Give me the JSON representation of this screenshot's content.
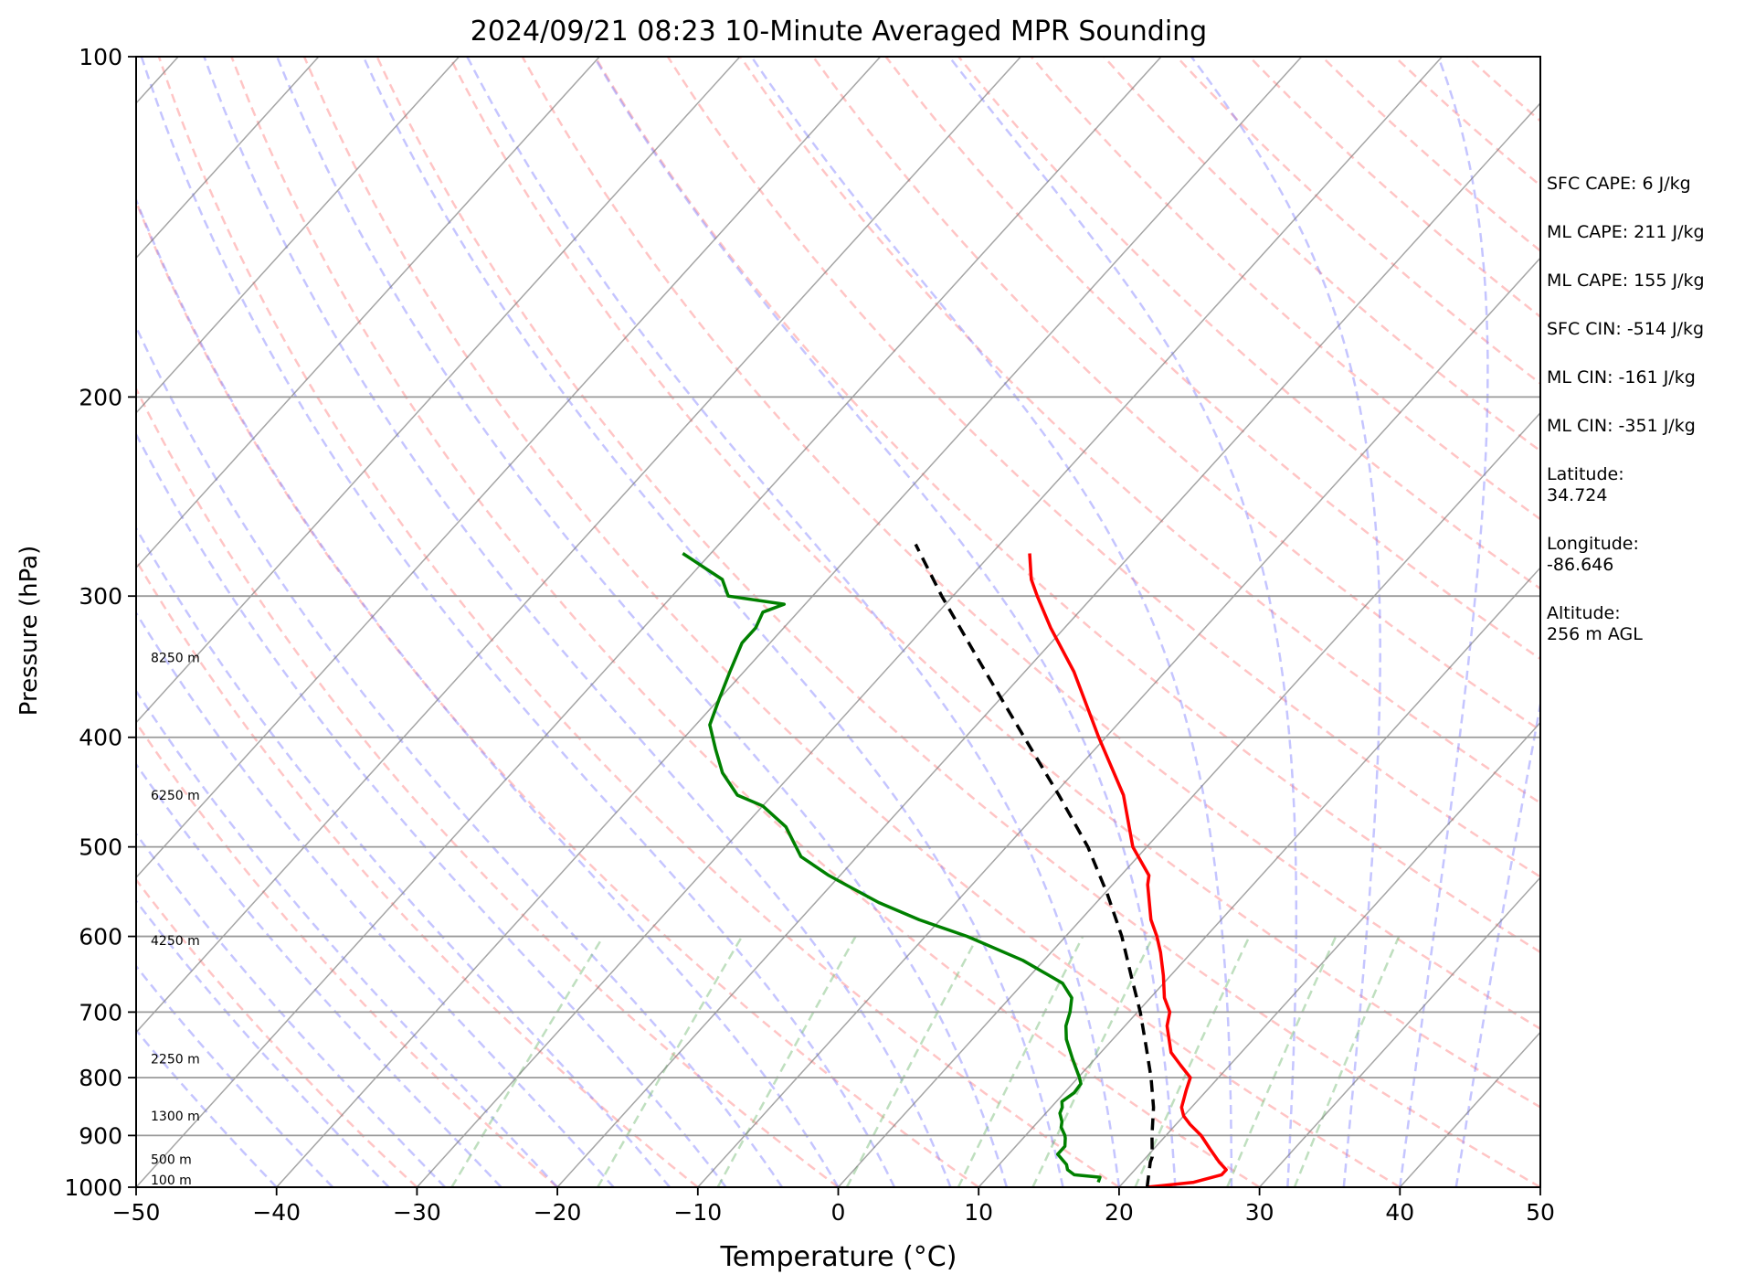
{
  "chart_data": {
    "type": "line",
    "title": "2024/09/21 08:23 10-Minute Averaged MPR Sounding",
    "xlabel": "Temperature (°C)",
    "ylabel": "Pressure (hPa)",
    "xlim": [
      -50,
      50
    ],
    "ylim": [
      1000,
      100
    ],
    "y_scale": "log",
    "skew": true,
    "x_ticks": [
      -50,
      -40,
      -30,
      -20,
      -10,
      0,
      10,
      20,
      30,
      40,
      50
    ],
    "x_tick_labels": [
      "−50",
      "−40",
      "−30",
      "−20",
      "−10",
      "0",
      "10",
      "20",
      "30",
      "40",
      "50"
    ],
    "y_ticks": [
      1000,
      900,
      800,
      700,
      600,
      500,
      400,
      300,
      200,
      100
    ],
    "y_tick_labels": [
      "1000",
      "900",
      "800",
      "700",
      "600",
      "500",
      "400",
      "300",
      "200",
      "100"
    ],
    "grid": true,
    "height_labels": [
      {
        "p": 985,
        "text": "100 m"
      },
      {
        "p": 945,
        "text": "500 m"
      },
      {
        "p": 865,
        "text": "1300 m"
      },
      {
        "p": 770,
        "text": "2250 m"
      },
      {
        "p": 605,
        "text": "4250 m"
      },
      {
        "p": 450,
        "text": "6250 m"
      },
      {
        "p": 340,
        "text": "8250 m"
      }
    ],
    "series": [
      {
        "role": "temperature",
        "color": "#ff0000",
        "points": [
          [
            1000,
            22.0
          ],
          [
            990,
            25.0
          ],
          [
            975,
            26.5
          ],
          [
            965,
            26.5
          ],
          [
            950,
            25.5
          ],
          [
            925,
            24.0
          ],
          [
            900,
            22.5
          ],
          [
            880,
            21.0
          ],
          [
            865,
            20.0
          ],
          [
            850,
            19.3
          ],
          [
            820,
            18.5
          ],
          [
            800,
            18.0
          ],
          [
            780,
            16.5
          ],
          [
            760,
            15.0
          ],
          [
            720,
            13.0
          ],
          [
            700,
            12.3
          ],
          [
            680,
            11.0
          ],
          [
            650,
            9.5
          ],
          [
            620,
            7.8
          ],
          [
            600,
            6.5
          ],
          [
            580,
            5.0
          ],
          [
            540,
            2.5
          ],
          [
            530,
            2.0
          ],
          [
            500,
            -1.0
          ],
          [
            450,
            -5.0
          ],
          [
            400,
            -10.5
          ],
          [
            350,
            -16.5
          ],
          [
            320,
            -21.0
          ],
          [
            300,
            -24.0
          ],
          [
            290,
            -25.5
          ],
          [
            275,
            -27.3
          ]
        ]
      },
      {
        "role": "dewpoint",
        "color": "#008000",
        "points": [
          [
            990,
            18.2
          ],
          [
            980,
            18.0
          ],
          [
            975,
            16.0
          ],
          [
            965,
            15.2
          ],
          [
            955,
            14.8
          ],
          [
            935,
            13.5
          ],
          [
            920,
            13.5
          ],
          [
            905,
            13.0
          ],
          [
            900,
            12.8
          ],
          [
            885,
            12.0
          ],
          [
            875,
            11.7
          ],
          [
            860,
            11.0
          ],
          [
            850,
            10.8
          ],
          [
            840,
            10.4
          ],
          [
            825,
            10.7
          ],
          [
            810,
            10.6
          ],
          [
            800,
            10.1
          ],
          [
            770,
            8.4
          ],
          [
            740,
            6.7
          ],
          [
            720,
            5.8
          ],
          [
            700,
            5.2
          ],
          [
            680,
            4.4
          ],
          [
            660,
            2.8
          ],
          [
            630,
            -1.5
          ],
          [
            600,
            -7.0
          ],
          [
            580,
            -11.5
          ],
          [
            560,
            -15.5
          ],
          [
            540,
            -19.0
          ],
          [
            530,
            -20.8
          ],
          [
            510,
            -24.0
          ],
          [
            480,
            -27.0
          ],
          [
            460,
            -30.0
          ],
          [
            450,
            -32.5
          ],
          [
            430,
            -35.0
          ],
          [
            410,
            -37.0
          ],
          [
            390,
            -39.0
          ],
          [
            370,
            -40.0
          ],
          [
            350,
            -41.0
          ],
          [
            330,
            -42.0
          ],
          [
            320,
            -42.0
          ],
          [
            310,
            -42.5
          ],
          [
            305,
            -41.5
          ],
          [
            300,
            -46.0
          ],
          [
            290,
            -47.5
          ],
          [
            275,
            -52.0
          ]
        ]
      },
      {
        "role": "parcel",
        "color": "#000000",
        "dashed": true,
        "points": [
          [
            1000,
            22.0
          ],
          [
            950,
            20.6
          ],
          [
            940,
            20.4
          ],
          [
            900,
            19.0
          ],
          [
            850,
            17.3
          ],
          [
            800,
            15.2
          ],
          [
            750,
            12.8
          ],
          [
            700,
            10.2
          ],
          [
            650,
            7.2
          ],
          [
            600,
            4.0
          ],
          [
            550,
            0.2
          ],
          [
            500,
            -4.2
          ],
          [
            450,
            -9.6
          ],
          [
            400,
            -15.8
          ],
          [
            350,
            -22.8
          ],
          [
            300,
            -30.8
          ],
          [
            270,
            -36.0
          ]
        ]
      }
    ],
    "reference_lines": {
      "isotherms": {
        "color": "#7f7f7f"
      },
      "dry_adiabats": {
        "color": "#ff7f7f",
        "dashed": true
      },
      "moist_adiabats": {
        "color": "#7f7fff",
        "dashed": true
      },
      "mixing_ratio_lines": {
        "color": "#80c080",
        "dashed": true
      }
    }
  },
  "info": [
    {
      "text": "SFC CAPE: 6 J/kg"
    },
    {
      "text": "ML CAPE: 211 J/kg"
    },
    {
      "text": "ML CAPE: 155 J/kg"
    },
    {
      "text": "SFC CIN: -514 J/kg"
    },
    {
      "text": "ML CIN: -161 J/kg"
    },
    {
      "text": "ML CIN: -351 J/kg"
    },
    {
      "text": "Latitude:\n34.724"
    },
    {
      "text": "Longitude:\n-86.646"
    },
    {
      "text": "Altitude:\n256 m AGL"
    }
  ]
}
